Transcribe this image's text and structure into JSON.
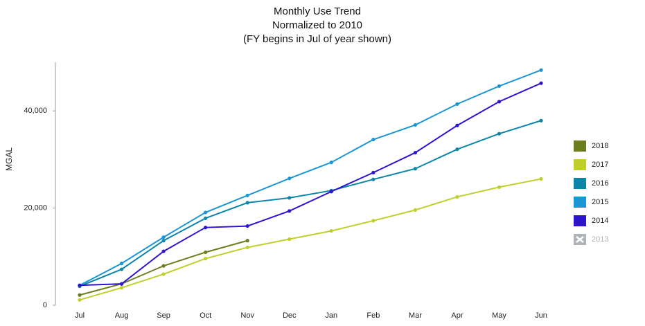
{
  "chart_data": {
    "type": "line",
    "title": "Monthly Use Trend",
    "subtitle": [
      "Normalized to 2010",
      "(FY begins in Jul of year shown)"
    ],
    "y_label": "MGAL",
    "categories": [
      "Jul",
      "Aug",
      "Sep",
      "Oct",
      "Nov",
      "Dec",
      "Jan",
      "Feb",
      "Mar",
      "Apr",
      "May",
      "Jun"
    ],
    "ylim": [
      0,
      50000
    ],
    "yticks": [
      0,
      {
        "value": 20000,
        "label": "20,000"
      },
      {
        "value": 40000,
        "label": "40,000"
      }
    ],
    "grid": false,
    "legend": "right",
    "series": [
      {
        "name": "2018",
        "color": "#6b7d1e",
        "values": [
          2100,
          4400,
          8100,
          10900,
          13300,
          null,
          null,
          null,
          null,
          null,
          null,
          null
        ]
      },
      {
        "name": "2017",
        "color": "#c0cf2a",
        "values": [
          1100,
          3600,
          6400,
          9600,
          11900,
          13600,
          15300,
          17400,
          19600,
          22300,
          24300,
          26000
        ]
      },
      {
        "name": "2016",
        "color": "#0b86a8",
        "values": [
          3900,
          7400,
          13300,
          17900,
          21100,
          22100,
          23600,
          25900,
          28100,
          32100,
          35300,
          38000
        ]
      },
      {
        "name": "2015",
        "color": "#1a96d4",
        "values": [
          4100,
          8600,
          14000,
          19100,
          22600,
          26100,
          29400,
          34100,
          37100,
          41400,
          45100,
          48400
        ]
      },
      {
        "name": "2014",
        "color": "#2c14d0",
        "values": [
          4100,
          4400,
          11100,
          16000,
          16300,
          19400,
          23400,
          27300,
          31400,
          37000,
          41900,
          45700
        ]
      },
      {
        "name": "2013",
        "color": "#b0b4b8",
        "visible": false,
        "values": [
          null,
          null,
          null,
          null,
          null,
          null,
          null,
          null,
          null,
          null,
          null,
          null
        ]
      }
    ]
  }
}
